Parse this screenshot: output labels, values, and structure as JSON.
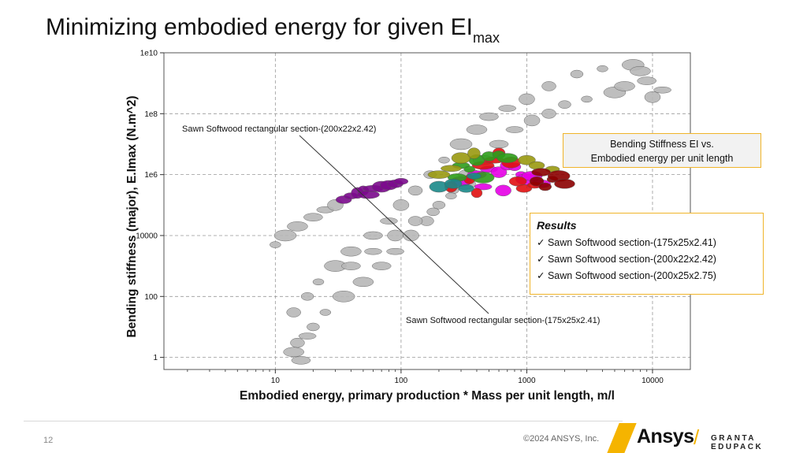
{
  "title": {
    "text": "Minimizing embodied energy for given EI",
    "subscript": "max"
  },
  "info_box": {
    "line1": "Bending Stiffness EI  vs.",
    "line2": "Embodied energy per unit length"
  },
  "results": {
    "title": "Results",
    "items": [
      "Sawn Softwood section-(175x25x2.41)",
      "Sawn Softwood section-(200x22x2.42)",
      "Sawn Softwood section-(200x25x2.75)"
    ]
  },
  "footer": {
    "page_number": "12",
    "copyright": "©2024 ANSYS, Inc.",
    "brand": "Ansys",
    "sub_brand": "GRANTA EDUPACK"
  },
  "colors": {
    "accent": "#f5b400",
    "bubble_gray": "#b8b8b8",
    "purple": "#7b0a8c",
    "magenta": "#e600e6",
    "red": "#e01010",
    "green": "#2e9e1a",
    "olive": "#9a9a10",
    "darkred": "#8b0000",
    "teal": "#1a8a8a"
  },
  "chart_data": {
    "type": "scatter",
    "title": "",
    "xlabel": "Embodied energy, primary production * Mass per unit length, m/l",
    "ylabel": "Bending stiffness (major), E.Imax (N.m^2)",
    "x_scale": "log",
    "y_scale": "log",
    "xlim": [
      1.3,
      20000
    ],
    "ylim": [
      0.4,
      10000000000
    ],
    "x_ticks": [
      10,
      100,
      1000,
      10000
    ],
    "x_tick_labels": [
      "10",
      "100",
      "1000",
      "10000"
    ],
    "y_ticks": [
      1,
      100,
      10000,
      1000000,
      100000000,
      10000000000
    ],
    "y_tick_labels": [
      "1",
      "100",
      "10000",
      "1e6",
      "1e8",
      "1e10"
    ],
    "grid": true,
    "annotations": [
      {
        "text": "Sawn Softwood rectangular section-(200x22x2.42)",
        "x": 40,
        "y": 500000
      },
      {
        "text": "Sawn Softwood rectangular section-(175x25x2.41)",
        "x": 40,
        "y": 500000
      }
    ],
    "series": [
      {
        "color": "#b8b8b8",
        "points": [
          [
            10,
            5000
          ],
          [
            12,
            10000
          ],
          [
            15,
            20000
          ],
          [
            20,
            40000
          ],
          [
            25,
            70000
          ],
          [
            30,
            100000
          ],
          [
            14,
            30
          ],
          [
            18,
            100
          ],
          [
            22,
            300
          ],
          [
            30,
            1000
          ],
          [
            40,
            3000
          ],
          [
            60,
            10000
          ],
          [
            80,
            30000
          ],
          [
            100,
            100000
          ],
          [
            130,
            300000
          ],
          [
            170,
            1000000
          ],
          [
            220,
            3000000
          ],
          [
            300,
            10000000
          ],
          [
            400,
            30000000
          ],
          [
            500,
            80000000
          ],
          [
            700,
            150000000
          ],
          [
            1000,
            300000000
          ],
          [
            1500,
            800000000
          ],
          [
            2500,
            2000000000
          ],
          [
            4000,
            3000000000
          ],
          [
            7000,
            4000000000
          ],
          [
            8000,
            2500000000
          ],
          [
            9000,
            1200000000
          ],
          [
            12000,
            600000000
          ],
          [
            10000,
            350000000
          ],
          [
            15,
            3
          ],
          [
            20,
            10
          ],
          [
            25,
            30
          ],
          [
            35,
            100
          ],
          [
            50,
            300
          ],
          [
            70,
            1000
          ],
          [
            90,
            3000
          ],
          [
            120,
            10000
          ],
          [
            160,
            30000
          ],
          [
            200,
            100000
          ],
          [
            260,
            300000
          ],
          [
            350,
            1000000
          ],
          [
            450,
            3000000
          ],
          [
            600,
            10000000
          ],
          [
            800,
            30000000
          ],
          [
            1100,
            60000000
          ],
          [
            1500,
            100000000
          ],
          [
            2000,
            200000000
          ],
          [
            3000,
            300000000
          ],
          [
            5000,
            500000000
          ],
          [
            6000,
            800000000
          ],
          [
            40,
            1000
          ],
          [
            60,
            3000
          ],
          [
            90,
            10000
          ],
          [
            130,
            30000
          ],
          [
            180,
            60000
          ],
          [
            250,
            200000
          ],
          [
            320,
            500000
          ],
          [
            14,
            1.5
          ],
          [
            16,
            0.8
          ],
          [
            18,
            5
          ]
        ]
      },
      {
        "color": "#7b0a8c",
        "points": [
          [
            35,
            150000
          ],
          [
            40,
            200000
          ],
          [
            45,
            250000
          ],
          [
            50,
            300000
          ],
          [
            55,
            220000
          ],
          [
            60,
            350000
          ],
          [
            70,
            400000
          ],
          [
            80,
            450000
          ],
          [
            90,
            500000
          ],
          [
            100,
            600000
          ]
        ]
      },
      {
        "color": "#e600e6",
        "points": [
          [
            300,
            600000
          ],
          [
            400,
            1000000
          ],
          [
            500,
            1500000
          ],
          [
            600,
            1200000
          ],
          [
            700,
            2000000
          ],
          [
            800,
            1800000
          ],
          [
            900,
            1000000
          ],
          [
            1000,
            700000
          ],
          [
            1100,
            900000
          ],
          [
            1300,
            500000
          ],
          [
            450,
            400000
          ],
          [
            650,
            300000
          ]
        ]
      },
      {
        "color": "#e01010",
        "points": [
          [
            250,
            400000
          ],
          [
            350,
            700000
          ],
          [
            450,
            2000000
          ],
          [
            550,
            3000000
          ],
          [
            750,
            2500000
          ],
          [
            850,
            600000
          ],
          [
            950,
            350000
          ],
          [
            1150,
            450000
          ],
          [
            600,
            5000000
          ],
          [
            400,
            250000
          ]
        ]
      },
      {
        "color": "#2e9e1a",
        "points": [
          [
            300,
            2000000
          ],
          [
            400,
            3000000
          ],
          [
            500,
            4000000
          ],
          [
            600,
            4500000
          ],
          [
            350,
            1500000
          ],
          [
            450,
            800000
          ],
          [
            700,
            3500000
          ],
          [
            280,
            800000
          ]
        ]
      },
      {
        "color": "#9a9a10",
        "points": [
          [
            200,
            1000000
          ],
          [
            250,
            1600000
          ],
          [
            300,
            3500000
          ],
          [
            1000,
            3000000
          ],
          [
            1200,
            2000000
          ],
          [
            1600,
            1500000
          ],
          [
            380,
            5000000
          ]
        ]
      },
      {
        "color": "#8b0000",
        "points": [
          [
            1200,
            600000
          ],
          [
            1400,
            400000
          ],
          [
            1600,
            700000
          ],
          [
            1800,
            900000
          ],
          [
            2000,
            500000
          ],
          [
            1300,
            1200000
          ]
        ]
      },
      {
        "color": "#1a8a8a",
        "points": [
          [
            200,
            400000
          ],
          [
            260,
            500000
          ],
          [
            330,
            350000
          ],
          [
            380,
            900000
          ]
        ]
      }
    ]
  }
}
